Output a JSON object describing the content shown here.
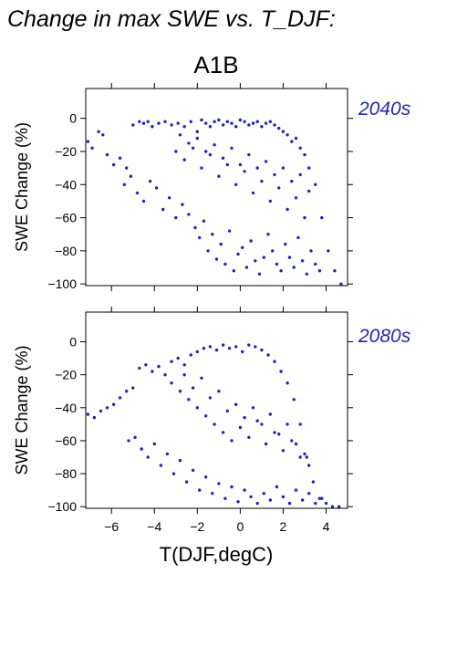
{
  "figure": {
    "title": "Change in max SWE vs. T_DJF:",
    "scenario": "A1B",
    "xlabel": "T(DJF,degC)",
    "point_color": "#2424b4"
  },
  "chart_data": [
    {
      "type": "scatter",
      "panel_label": "2040s",
      "xlabel": "",
      "ylabel": "SWE Change (%)",
      "xlim": [
        -7.2,
        5.0
      ],
      "ylim": [
        -101,
        18
      ],
      "xticks": [
        -6,
        -4,
        -2,
        0,
        2,
        4
      ],
      "yticks": [
        0,
        -20,
        -40,
        -60,
        -80,
        -100
      ],
      "tick_labels_y": [
        "0",
        "−20",
        "−40",
        "−60",
        "−80",
        "−100"
      ],
      "series": [
        {
          "x": [
            -7.1,
            -6.9,
            -6.6,
            -6.4,
            -6.2,
            -5.9,
            -5.6,
            -5.3,
            -5.0,
            -4.7,
            -4.5,
            -4.3,
            -4.1,
            -3.8,
            -3.5,
            -3.2,
            -2.9,
            -2.6,
            -2.3,
            -2.0,
            -1.8,
            -1.6,
            -1.4,
            -1.2,
            -1.0,
            -0.8,
            -0.6,
            -0.4,
            -0.2,
            0.0,
            0.2,
            0.4,
            0.6,
            0.8,
            1.0,
            1.2,
            1.4,
            1.6,
            1.8,
            2.0,
            2.2,
            2.4,
            2.6,
            2.8,
            3.0,
            3.2,
            3.5,
            3.8,
            4.1,
            4.4,
            4.7
          ],
          "y": [
            -14,
            -18,
            -8,
            -10,
            -22,
            -28,
            -24,
            -30,
            -4,
            -2,
            -3,
            -2,
            -5,
            -3,
            -2,
            -4,
            -3,
            -5,
            -2,
            -8,
            -1,
            -3,
            -5,
            -2,
            -1,
            -4,
            -2,
            -3,
            -5,
            -1,
            -2,
            -4,
            -3,
            -2,
            -5,
            -3,
            -2,
            -4,
            -6,
            -8,
            -10,
            -14,
            -12,
            -18,
            -22,
            -30,
            -40,
            -60,
            -80,
            -92,
            -100
          ]
        },
        {
          "x": [
            -5.4,
            -5.1,
            -4.8,
            -4.5,
            -4.2,
            -3.9,
            -3.6,
            -3.3,
            -3.0,
            -2.7,
            -2.4,
            -2.1,
            -1.9,
            -1.7,
            -1.5,
            -1.3,
            -1.1,
            -0.9,
            -0.7,
            -0.5,
            -0.3,
            -0.1,
            0.1,
            0.3,
            0.5,
            0.7,
            0.9,
            1.1,
            1.3,
            1.5,
            1.7,
            1.9,
            2.1,
            2.3,
            2.5,
            2.7,
            2.9,
            3.1,
            3.3,
            3.5,
            3.7
          ],
          "y": [
            -40,
            -35,
            -45,
            -50,
            -38,
            -42,
            -55,
            -48,
            -60,
            -52,
            -58,
            -66,
            -72,
            -62,
            -80,
            -70,
            -85,
            -76,
            -88,
            -68,
            -92,
            -82,
            -78,
            -90,
            -74,
            -86,
            -94,
            -84,
            -70,
            -80,
            -88,
            -92,
            -76,
            -84,
            -90,
            -72,
            -86,
            -94,
            -80,
            -88,
            -92
          ]
        },
        {
          "x": [
            -3.0,
            -2.6,
            -2.2,
            -1.8,
            -1.4,
            -1.0,
            -0.6,
            -0.2,
            0.2,
            0.6,
            1.0,
            1.4,
            1.8,
            2.2,
            2.6,
            3.0,
            -2.8,
            -2.4,
            -2.0,
            -1.6,
            -1.2,
            -0.8,
            -0.4,
            0.0,
            0.4,
            0.8,
            1.2,
            1.6,
            2.0,
            2.4,
            2.8,
            3.2
          ],
          "y": [
            -20,
            -25,
            -18,
            -30,
            -22,
            -35,
            -28,
            -40,
            -32,
            -45,
            -38,
            -50,
            -42,
            -55,
            -48,
            -60,
            -10,
            -15,
            -12,
            -20,
            -16,
            -24,
            -18,
            -28,
            -22,
            -30,
            -26,
            -34,
            -30,
            -38,
            -34,
            -44
          ]
        }
      ]
    },
    {
      "type": "scatter",
      "panel_label": "2080s",
      "xlabel": "T(DJF,degC)",
      "ylabel": "SWE Change (%)",
      "xlim": [
        -7.2,
        5.0
      ],
      "ylim": [
        -101,
        18
      ],
      "xticks": [
        -6,
        -4,
        -2,
        0,
        2,
        4
      ],
      "yticks": [
        0,
        -20,
        -40,
        -60,
        -80,
        -100
      ],
      "tick_labels_x": [
        "−6",
        "−4",
        "−2",
        "0",
        "2",
        "4"
      ],
      "tick_labels_y": [
        "0",
        "−20",
        "−40",
        "−60",
        "−80",
        "−100"
      ],
      "series": [
        {
          "x": [
            -7.1,
            -6.8,
            -6.5,
            -6.2,
            -5.9,
            -5.6,
            -5.3,
            -5.0,
            -4.7,
            -4.4,
            -4.1,
            -3.8,
            -3.5,
            -3.2,
            -2.9,
            -2.6,
            -2.3,
            -2.0,
            -1.7,
            -1.4,
            -1.1,
            -0.8,
            -0.5,
            -0.2,
            0.1,
            0.4,
            0.7,
            1.0,
            1.3,
            1.6,
            1.9,
            2.2,
            2.5,
            2.8,
            3.1,
            3.4,
            3.7,
            4.0,
            4.3,
            4.6
          ],
          "y": [
            -44,
            -46,
            -42,
            -40,
            -38,
            -34,
            -30,
            -28,
            -16,
            -14,
            -18,
            -15,
            -20,
            -12,
            -10,
            -14,
            -8,
            -6,
            -4,
            -3,
            -5,
            -2,
            -4,
            -3,
            -6,
            -2,
            -3,
            -5,
            -8,
            -12,
            -18,
            -25,
            -35,
            -50,
            -70,
            -85,
            -95,
            -98,
            -100,
            -100
          ]
        },
        {
          "x": [
            -5.2,
            -4.9,
            -4.6,
            -4.3,
            -4.0,
            -3.7,
            -3.4,
            -3.1,
            -2.8,
            -2.5,
            -2.2,
            -1.9,
            -1.6,
            -1.3,
            -1.0,
            -0.7,
            -0.4,
            -0.1,
            0.2,
            0.5,
            0.8,
            1.1,
            1.4,
            1.7,
            2.0,
            2.3,
            2.6,
            2.9,
            3.2,
            3.5,
            3.8
          ],
          "y": [
            -60,
            -58,
            -65,
            -70,
            -62,
            -75,
            -68,
            -80,
            -72,
            -85,
            -78,
            -90,
            -82,
            -92,
            -86,
            -95,
            -88,
            -97,
            -90,
            -94,
            -98,
            -92,
            -96,
            -88,
            -94,
            -98,
            -90,
            -96,
            -92,
            -98,
            -95
          ]
        },
        {
          "x": [
            -3.2,
            -2.8,
            -2.4,
            -2.0,
            -1.6,
            -1.2,
            -0.8,
            -0.4,
            0.0,
            0.4,
            0.8,
            1.2,
            1.6,
            2.0,
            2.4,
            2.8,
            3.2,
            -2.6,
            -2.2,
            -1.8,
            -1.4,
            -1.0,
            -0.6,
            -0.2,
            0.2,
            0.6,
            1.0,
            1.4,
            1.8,
            2.2,
            2.6,
            3.0
          ],
          "y": [
            -25,
            -30,
            -35,
            -40,
            -45,
            -50,
            -55,
            -60,
            -52,
            -58,
            -48,
            -62,
            -55,
            -66,
            -60,
            -70,
            -75,
            -20,
            -28,
            -22,
            -34,
            -30,
            -42,
            -38,
            -46,
            -40,
            -50,
            -44,
            -56,
            -50,
            -62,
            -68
          ]
        }
      ]
    }
  ]
}
